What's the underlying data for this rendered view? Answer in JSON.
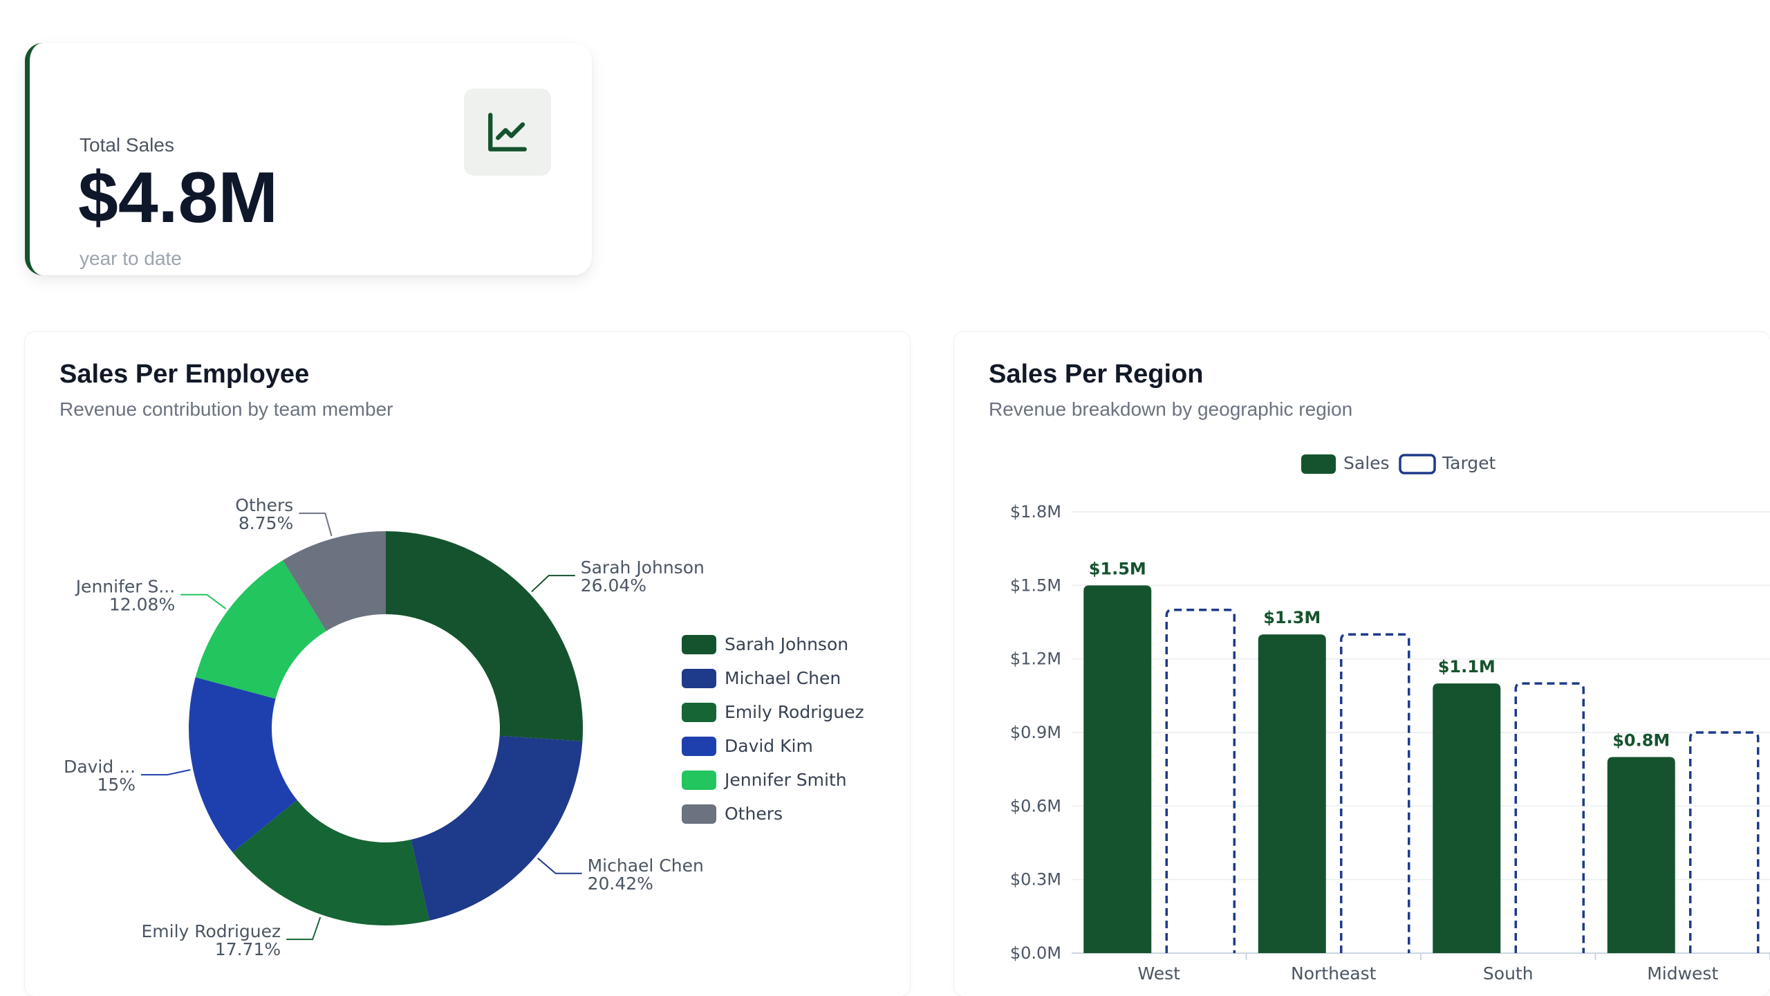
{
  "kpi": {
    "label": "Total Sales",
    "value": "$4.8M",
    "subtext": "year to date",
    "icon": "line-chart-icon"
  },
  "colors": {
    "accent": "#14532d",
    "dark_green": "#15532e",
    "green": "#166534",
    "navy": "#1e3a8a",
    "blue": "#1e40af",
    "light_green": "#22c55e",
    "gray": "#6b7280",
    "target_stroke": "#1e3a8a"
  },
  "employee_panel": {
    "title": "Sales Per Employee",
    "subtitle": "Revenue contribution by team member"
  },
  "region_panel": {
    "title": "Sales Per Region",
    "subtitle": "Revenue breakdown by geographic region"
  },
  "chart_data": [
    {
      "type": "pie",
      "title": "Sales Per Employee",
      "subtitle": "Revenue contribution by team member",
      "donut": true,
      "slices": [
        {
          "name": "Sarah Johnson",
          "label": "Sarah Johnson",
          "pct_label": "26.04%",
          "value": 26.04,
          "color": "#15532e"
        },
        {
          "name": "Michael Chen",
          "label": "Michael Chen",
          "pct_label": "20.42%",
          "value": 20.42,
          "color": "#1e3a8a"
        },
        {
          "name": "Emily Rodriguez",
          "label": "Emily Rodriguez",
          "pct_label": "17.71%",
          "value": 17.71,
          "color": "#166534"
        },
        {
          "name": "David Kim",
          "label": "David ...",
          "pct_label": "15%",
          "value": 15,
          "color": "#1e40af"
        },
        {
          "name": "Jennifer Smith",
          "label": "Jennifer S...",
          "pct_label": "12.08%",
          "value": 12.08,
          "color": "#22c55e"
        },
        {
          "name": "Others",
          "label": "Others",
          "pct_label": "8.75%",
          "value": 8.75,
          "color": "#6b7280"
        }
      ],
      "legend_position": "right"
    },
    {
      "type": "bar",
      "title": "Sales Per Region",
      "subtitle": "Revenue breakdown by geographic region",
      "categories": [
        "West",
        "Northeast",
        "South",
        "Midwest"
      ],
      "series": [
        {
          "name": "Sales",
          "values": [
            1.5,
            1.3,
            1.1,
            0.8
          ],
          "labels": [
            "$1.5M",
            "$1.3M",
            "$1.1M",
            "$0.8M"
          ],
          "color": "#15532e",
          "style": "filled"
        },
        {
          "name": "Target",
          "values": [
            1.4,
            1.3,
            1.1,
            0.9
          ],
          "color": "#1e3a8a",
          "style": "dashed-outline"
        }
      ],
      "yticks": [
        "$0.0M",
        "$0.3M",
        "$0.6M",
        "$0.9M",
        "$1.2M",
        "$1.5M",
        "$1.8M"
      ],
      "ylim": [
        0,
        1.8
      ],
      "grid": true,
      "legend_position": "top-center"
    }
  ]
}
